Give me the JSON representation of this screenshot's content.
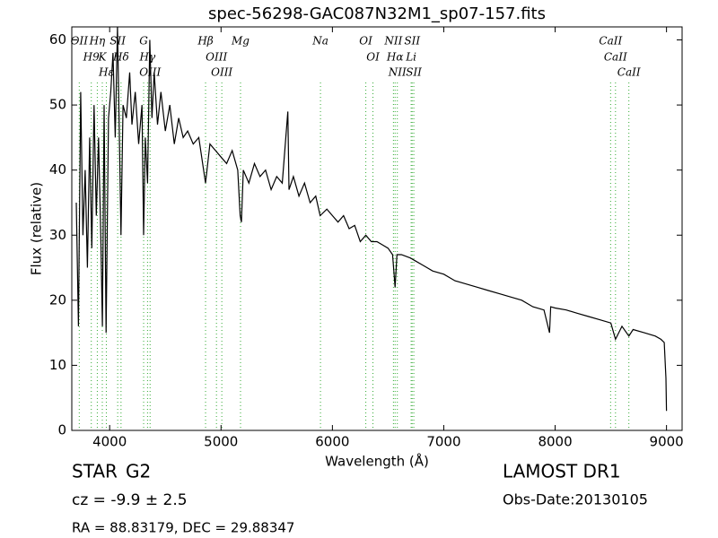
{
  "chart_data": {
    "type": "line",
    "title": "spec-56298-GAC087N32M1_sp07-157.fits",
    "xlabel": "Wavelength (Å)",
    "ylabel": "Flux (relative)",
    "color": "#000000",
    "x": [
      3700,
      3720,
      3740,
      3760,
      3780,
      3800,
      3820,
      3840,
      3860,
      3880,
      3900,
      3920,
      3935,
      3950,
      3968,
      3990,
      4010,
      4030,
      4050,
      4070,
      4090,
      4102,
      4120,
      4150,
      4180,
      4200,
      4230,
      4260,
      4290,
      4305,
      4320,
      4340,
      4360,
      4380,
      4400,
      4430,
      4460,
      4500,
      4540,
      4580,
      4620,
      4660,
      4700,
      4750,
      4800,
      4861,
      4900,
      4950,
      5000,
      5050,
      5100,
      5150,
      5172,
      5183,
      5200,
      5250,
      5300,
      5350,
      5400,
      5450,
      5500,
      5550,
      5600,
      5610,
      5650,
      5700,
      5750,
      5800,
      5850,
      5890,
      5950,
      6000,
      6050,
      6100,
      6150,
      6200,
      6250,
      6300,
      6350,
      6400,
      6450,
      6500,
      6540,
      6563,
      6580,
      6620,
      6700,
      6750,
      6800,
      6850,
      6900,
      7000,
      7100,
      7200,
      7300,
      7400,
      7500,
      7600,
      7700,
      7800,
      7900,
      7950,
      7960,
      8000,
      8100,
      8200,
      8300,
      8400,
      8500,
      8542,
      8600,
      8662,
      8700,
      8800,
      8900,
      8950,
      8980,
      8995,
      9000
    ],
    "values": [
      35,
      16,
      52,
      30,
      40,
      25,
      45,
      28,
      50,
      33,
      45,
      30,
      16,
      50,
      15,
      48,
      52,
      58,
      45,
      62,
      42,
      30,
      50,
      48,
      55,
      47,
      52,
      44,
      50,
      30,
      45,
      38,
      60,
      48,
      55,
      47,
      52,
      46,
      50,
      44,
      48,
      45,
      46,
      44,
      45,
      38,
      44,
      43,
      42,
      41,
      43,
      40,
      33,
      32,
      40,
      38,
      41,
      39,
      40,
      37,
      39,
      38,
      49,
      37,
      39,
      36,
      38,
      35,
      36,
      33,
      34,
      33,
      32,
      33,
      31,
      31.5,
      29,
      30,
      29,
      29,
      28.5,
      28,
      27,
      22,
      27,
      27,
      26.5,
      26,
      25.5,
      25,
      24.5,
      24,
      23,
      22.5,
      22,
      21.5,
      21,
      20.5,
      20,
      19,
      18.5,
      15,
      19,
      18.8,
      18.5,
      18,
      17.5,
      17,
      16.5,
      14,
      16,
      14.5,
      15.5,
      15,
      14.5,
      14,
      13.5,
      8,
      3
    ],
    "xlim": [
      3660,
      9140
    ],
    "xticks": [
      4000,
      5000,
      6000,
      7000,
      8000,
      9000
    ],
    "ylim": [
      0,
      62
    ],
    "yticks": [
      0,
      10,
      20,
      30,
      40,
      50,
      60
    ],
    "line_color": "#33aa33",
    "lines": [
      {
        "wavelength": 3727,
        "label": "OII"
      },
      {
        "wavelength": 3835,
        "label": "H9"
      },
      {
        "wavelength": 3889,
        "label": "Hη"
      },
      {
        "wavelength": 3934,
        "label": "K"
      },
      {
        "wavelength": 3970,
        "label": "Hε"
      },
      {
        "wavelength": 4072,
        "label": "SII"
      },
      {
        "wavelength": 4102,
        "label": "Hδ"
      },
      {
        "wavelength": 4305,
        "label": "G"
      },
      {
        "wavelength": 4340,
        "label": "Hγ"
      },
      {
        "wavelength": 4363,
        "label": "OIII"
      },
      {
        "wavelength": 4861,
        "label": "Hβ"
      },
      {
        "wavelength": 4959,
        "label": "OIII"
      },
      {
        "wavelength": 5007,
        "label": "OIII"
      },
      {
        "wavelength": 5175,
        "label": "Mg"
      },
      {
        "wavelength": 5893,
        "label": "Na"
      },
      {
        "wavelength": 6300,
        "label": "OI"
      },
      {
        "wavelength": 6364,
        "label": "OI"
      },
      {
        "wavelength": 6548,
        "label": "NII"
      },
      {
        "wavelength": 6563,
        "label": "Hα"
      },
      {
        "wavelength": 6583,
        "label": "NII"
      },
      {
        "wavelength": 6707,
        "label": "Li"
      },
      {
        "wavelength": 6716,
        "label": "SII"
      },
      {
        "wavelength": 6731,
        "label": "SII"
      },
      {
        "wavelength": 8498,
        "label": "CaII"
      },
      {
        "wavelength": 8542,
        "label": "CaII"
      },
      {
        "wavelength": 8662,
        "label": "CaII"
      }
    ]
  },
  "footer": {
    "class": "STAR",
    "subclass": "G2",
    "redshift": "cz = -9.9 ± 2.5",
    "coords": "RA = 88.83179, DEC = 29.88347",
    "release": "LAMOST DR1",
    "obs_date": "Obs-Date:20130105"
  }
}
